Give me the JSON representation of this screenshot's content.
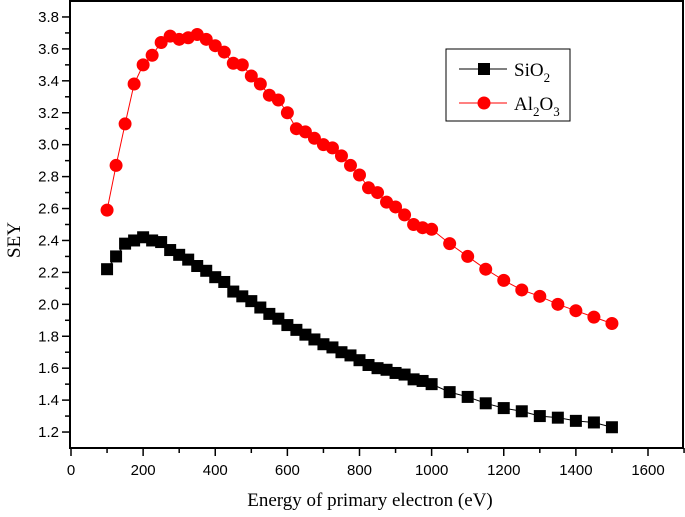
{
  "chart_data": {
    "type": "line",
    "title": "",
    "xlabel": "Energy of primary electron (eV)",
    "ylabel": "SEY",
    "xlim": [
      0,
      1700
    ],
    "ylim": [
      1.1,
      3.9
    ],
    "xticks": [
      0,
      200,
      400,
      600,
      800,
      1000,
      1200,
      1400,
      1600
    ],
    "yticks": [
      1.2,
      1.4,
      1.6,
      1.8,
      2.0,
      2.2,
      2.4,
      2.6,
      2.8,
      3.0,
      3.2,
      3.4,
      3.6,
      3.8
    ],
    "grid": false,
    "legend_position": "top-right",
    "x": [
      100,
      125,
      150,
      175,
      200,
      225,
      250,
      275,
      300,
      325,
      350,
      375,
      400,
      425,
      450,
      475,
      500,
      525,
      550,
      575,
      600,
      625,
      650,
      675,
      700,
      725,
      750,
      775,
      800,
      825,
      850,
      875,
      900,
      925,
      950,
      975,
      1000,
      1050,
      1100,
      1150,
      1200,
      1250,
      1300,
      1350,
      1400,
      1450,
      1500
    ],
    "series": [
      {
        "name": "SiO2",
        "name_main": "SiO",
        "name_sub": "2",
        "color": "#000000",
        "marker": "square",
        "values": [
          2.22,
          2.3,
          2.38,
          2.4,
          2.42,
          2.4,
          2.39,
          2.34,
          2.31,
          2.28,
          2.24,
          2.21,
          2.17,
          2.14,
          2.08,
          2.05,
          2.02,
          1.98,
          1.94,
          1.91,
          1.87,
          1.84,
          1.81,
          1.78,
          1.75,
          1.73,
          1.7,
          1.68,
          1.65,
          1.62,
          1.6,
          1.59,
          1.57,
          1.56,
          1.53,
          1.52,
          1.5,
          1.45,
          1.42,
          1.38,
          1.35,
          1.33,
          1.3,
          1.29,
          1.27,
          1.26,
          1.23
        ]
      },
      {
        "name": "Al2O3",
        "name_parts": [
          "Al",
          "2",
          "O",
          "3"
        ],
        "color": "#ff0000",
        "marker": "circle",
        "values": [
          2.59,
          2.87,
          3.13,
          3.38,
          3.5,
          3.56,
          3.64,
          3.68,
          3.66,
          3.67,
          3.69,
          3.66,
          3.62,
          3.58,
          3.51,
          3.5,
          3.43,
          3.38,
          3.31,
          3.28,
          3.2,
          3.1,
          3.08,
          3.04,
          3.0,
          2.98,
          2.93,
          2.87,
          2.81,
          2.73,
          2.7,
          2.64,
          2.61,
          2.56,
          2.5,
          2.48,
          2.47,
          2.38,
          2.3,
          2.22,
          2.15,
          2.09,
          2.05,
          2.0,
          1.96,
          1.92,
          1.88
        ]
      }
    ]
  }
}
